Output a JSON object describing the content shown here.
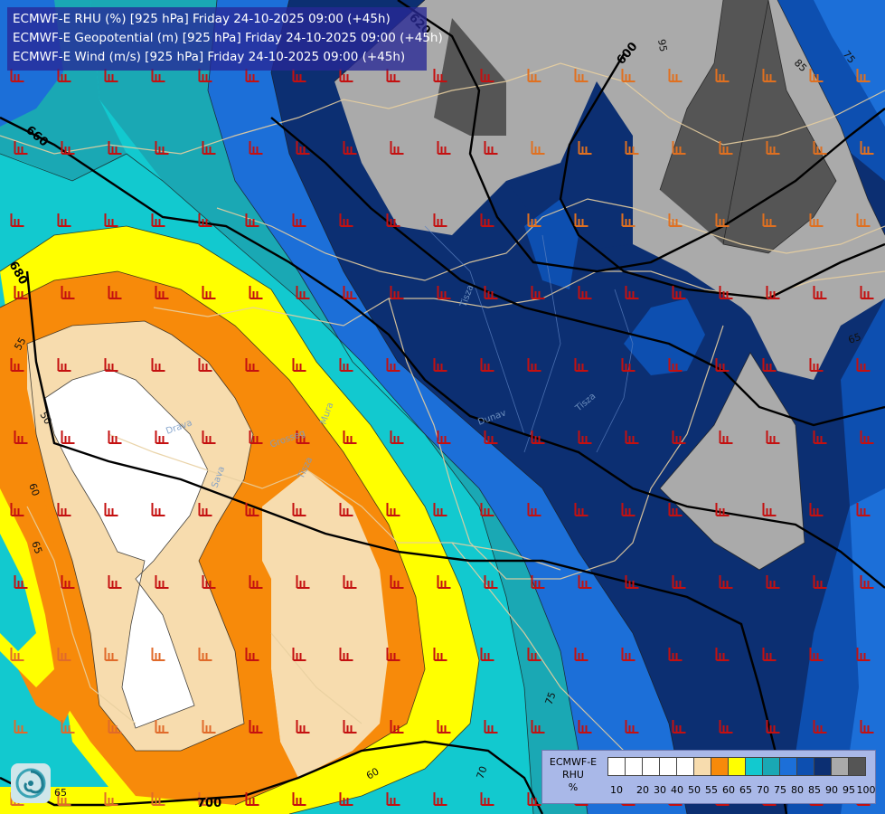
{
  "titles": {
    "line1": "ECMWF-E RHU (%) [925 hPa] Friday 24-10-2025 09:00 (+45h)",
    "line2": "ECMWF-E Geopotential (m) [925 hPa] Friday 24-10-2025 09:00 (+45h)",
    "line3": "ECMWF-E Wind (m/s) [925 hPa] Friday 24-10-2025 09:00 (+45h)"
  },
  "legend": {
    "title1": "ECMWF-E",
    "title2": "RHU",
    "unit": "%",
    "colors": [
      "#ffffff",
      "#ffffff",
      "#ffffff",
      "#ffffff",
      "#ffffff",
      "#f7dcae",
      "#f78a0a",
      "#ffff00",
      "#12c9cf",
      "#1aa8b4",
      "#1c6fd8",
      "#0d4fb0",
      "#0c2f72",
      "#aaaaaa",
      "#555555"
    ],
    "ticks": [
      "10",
      "20",
      "30",
      "40",
      "50",
      "55",
      "60",
      "65",
      "70",
      "75",
      "80",
      "85",
      "90",
      "95",
      "100"
    ]
  },
  "contour_labels": {
    "geopotential": [
      "620",
      "600",
      "660",
      "680",
      "700"
    ],
    "rhu": [
      "95",
      "85",
      "75",
      "65",
      "65",
      "55",
      "50",
      "60",
      "65",
      "75",
      "60",
      "70"
    ]
  },
  "map_labels": [
    "Tisza",
    "Tisza",
    "Dunav",
    "Drava",
    "Sava",
    "Tisza",
    "Grosseg",
    "Mura"
  ],
  "logo": "ecmwf-swirl-icon"
}
